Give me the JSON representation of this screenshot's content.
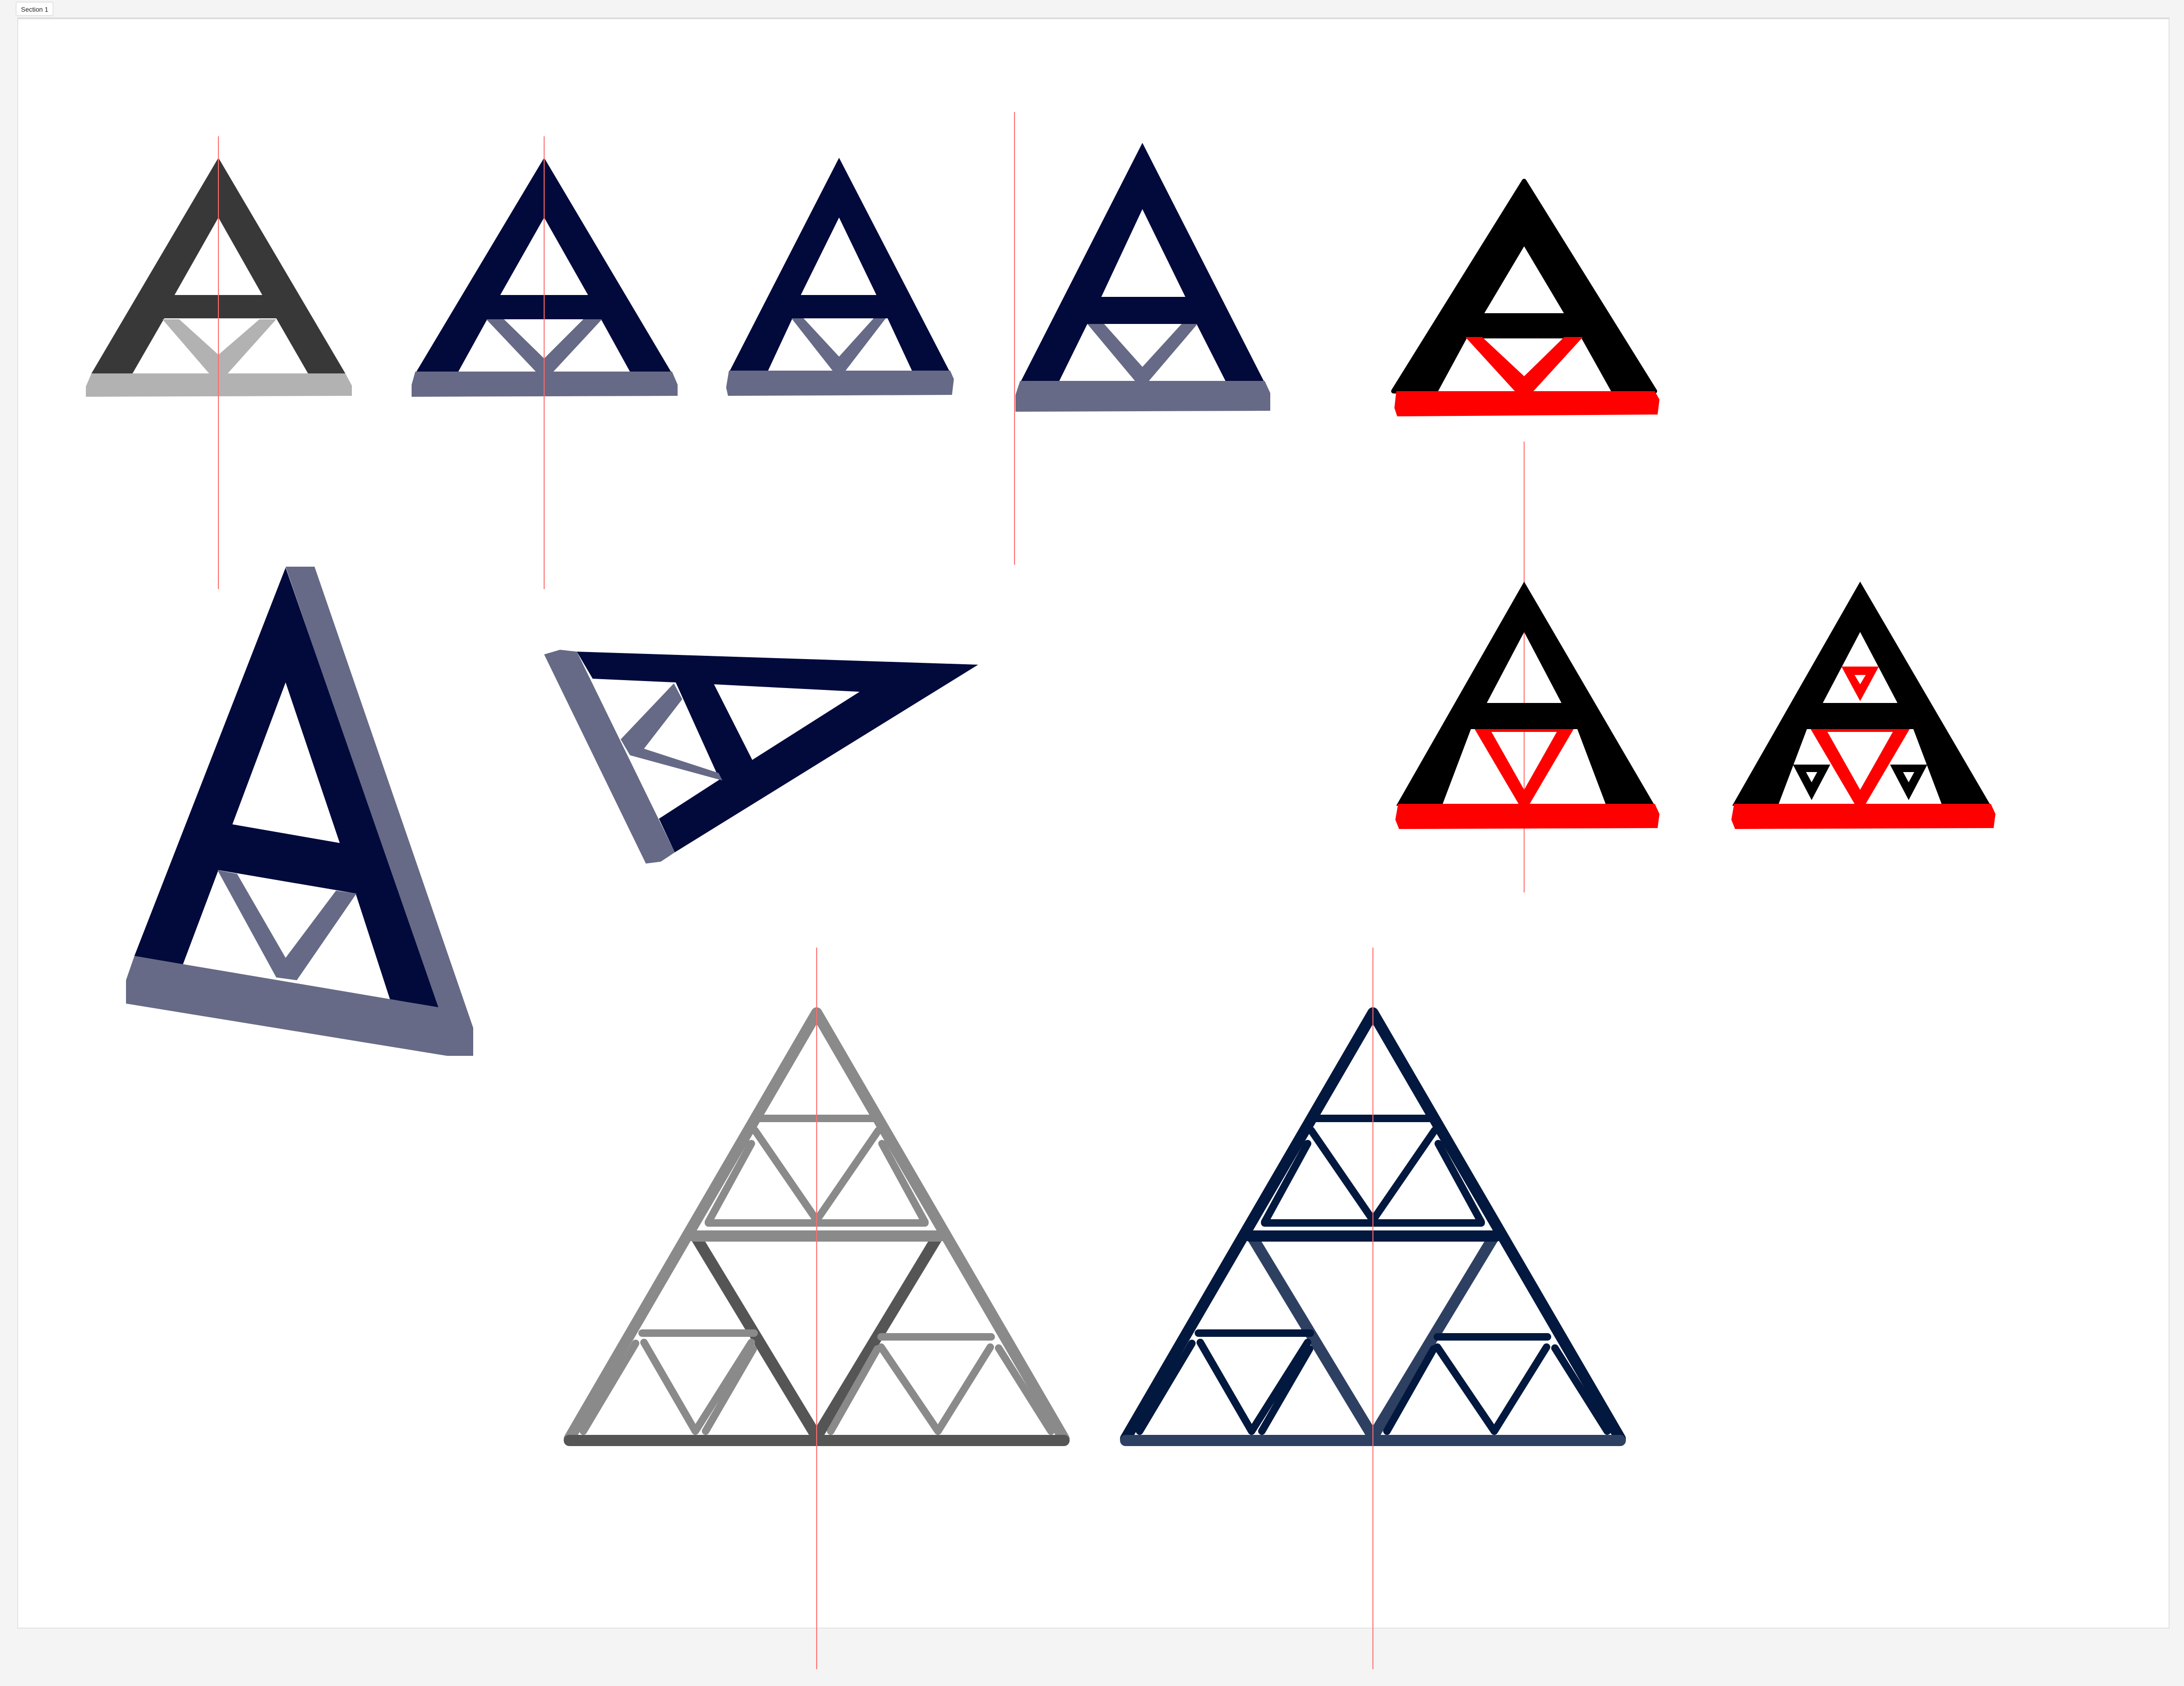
{
  "section": {
    "label": "Section 1"
  },
  "colors": {
    "background": "#f4f4f4",
    "board": "#ffffff",
    "navy": "#020a3c",
    "slate": "#666a86",
    "charcoal": "#383838",
    "silver": "#b2b2b2",
    "black": "#000000",
    "red": "#ff0000",
    "gray_light": "#8a8a8a",
    "gray_dark": "#555555",
    "blue_dark": "#03183e",
    "blue_mid": "#2e4062",
    "guide": "#ff6b6b"
  },
  "artboard": {
    "icons": [
      {
        "name": "logo-a-charcoal",
        "style": "charcoal-silver"
      },
      {
        "name": "logo-a-navy-1",
        "style": "navy-slate"
      },
      {
        "name": "logo-a-navy-2",
        "style": "navy-slate-narrow"
      },
      {
        "name": "logo-a-navy-3",
        "style": "navy-slate-tall"
      },
      {
        "name": "logo-a-black-red",
        "style": "black-red"
      },
      {
        "name": "logo-a-navy-perspective",
        "style": "navy-slate-3d"
      },
      {
        "name": "logo-a-navy-rotated",
        "style": "navy-slate-rotated"
      },
      {
        "name": "logo-a-black-red-2",
        "style": "black-red-inner"
      },
      {
        "name": "logo-a-black-red-fractal",
        "style": "black-red-fractal"
      },
      {
        "name": "sierpinski-gray",
        "style": "gray-outline"
      },
      {
        "name": "sierpinski-navy",
        "style": "navy-outline"
      }
    ]
  }
}
